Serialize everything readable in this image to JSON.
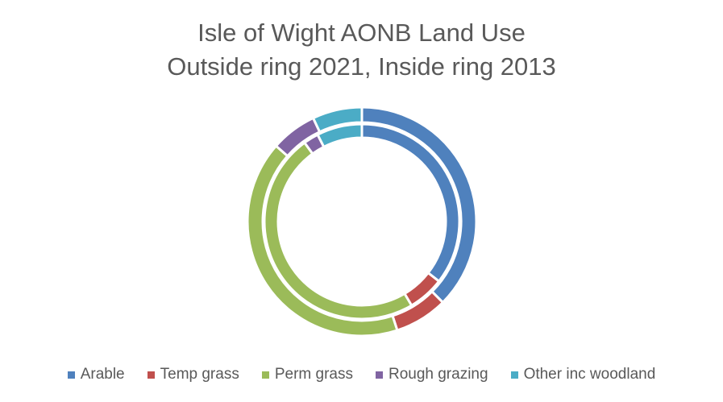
{
  "chart_data": {
    "type": "pie",
    "subtype": "donut",
    "title": "Isle of Wight AONB Land Use",
    "subtitle": "Outside ring 2021, Inside ring 2013",
    "categories": [
      "Arable",
      "Temp grass",
      "Perm grass",
      "Rough grazing",
      "Other inc woodland"
    ],
    "series": [
      {
        "ring": "outer",
        "values": [
          37.5,
          7.5,
          41.5,
          6.5,
          7.0
        ]
      },
      {
        "ring": "inner",
        "values": [
          35.5,
          6.0,
          48.5,
          2.5,
          7.5
        ]
      }
    ],
    "colors": [
      "#4F81BD",
      "#C0504D",
      "#9BBB59",
      "#8064A2",
      "#4BACC6"
    ],
    "legend_position": "bottom"
  }
}
